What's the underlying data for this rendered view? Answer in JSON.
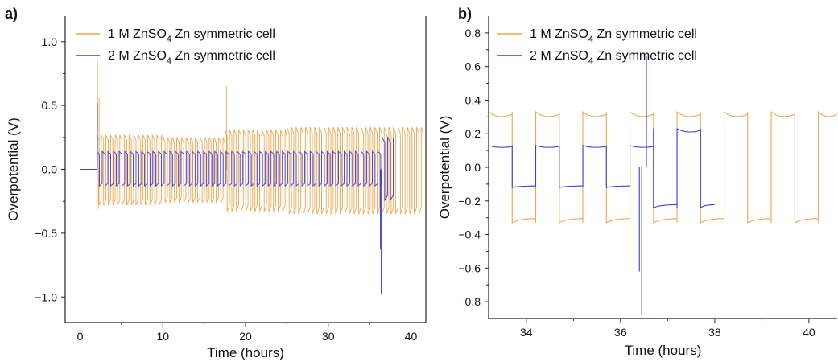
{
  "figure": {
    "panels": [
      {
        "label": "a)",
        "xlabel": "Time (hours)",
        "ylabel": "Overpotential (V)"
      },
      {
        "label": "b)",
        "xlabel": "Time (hours)",
        "ylabel": "Overpotential (V)"
      }
    ],
    "legend": [
      {
        "prefix": "1 M ZnSO",
        "sub": "4",
        "suffix": " Zn symmetric cell",
        "color": "#f0a64e"
      },
      {
        "prefix": "2 M ZnSO",
        "sub": "4",
        "suffix": " Zn symmetric cell",
        "color": "#3c3cdc"
      }
    ]
  },
  "chart_data": [
    {
      "type": "line",
      "panel": "a)",
      "title": "",
      "xlabel": "Time (hours)",
      "ylabel": "Overpotential (V)",
      "xlim": [
        -1.8,
        41.8
      ],
      "ylim": [
        -1.2,
        1.2
      ],
      "xticks": [
        0,
        10,
        20,
        30,
        40
      ],
      "yticks": [
        1.0,
        0.5,
        0.0,
        -0.5,
        -1.0
      ],
      "ytick_labels": [
        "1.0",
        "0.5",
        "0.0",
        "−0.5",
        "−1.0"
      ],
      "legend_position": "top-left",
      "series": [
        {
          "name": "1 M ZnSO4 Zn symmetric cell",
          "color": "#f0a64e",
          "segments": [
            {
              "t0": 0,
              "t1": 2,
              "hi": 0.0,
              "lo": 0.0
            },
            {
              "t0": 2,
              "t1": 10,
              "hi": 0.27,
              "lo": -0.28
            },
            {
              "t0": 10,
              "t1": 17.5,
              "hi": 0.25,
              "lo": -0.26
            },
            {
              "t0": 17.5,
              "t1": 25,
              "hi": 0.31,
              "lo": -0.33
            },
            {
              "t0": 25,
              "t1": 41.5,
              "hi": 0.33,
              "lo": -0.35
            }
          ],
          "spikes": [
            {
              "t": 2.1,
              "v": 0.85
            },
            {
              "t": 2.3,
              "v": 0.56
            },
            {
              "t": 17.7,
              "v": 0.65
            },
            {
              "t": 2.2,
              "v": -0.31
            }
          ]
        },
        {
          "name": "2 M ZnSO4 Zn symmetric cell",
          "color": "#3c3cdc",
          "segments": [
            {
              "t0": 0,
              "t1": 2,
              "hi": 0.0,
              "lo": 0.0
            },
            {
              "t0": 2,
              "t1": 36.5,
              "hi": 0.14,
              "lo": -0.13
            },
            {
              "t0": 36.5,
              "t1": 38,
              "hi": 0.25,
              "lo": -0.24
            }
          ],
          "spikes": [
            {
              "t": 2.1,
              "v": 0.52
            },
            {
              "t": 36.4,
              "v": -0.98
            },
            {
              "t": 36.5,
              "v": 0.66
            },
            {
              "t": 36.3,
              "v": -0.62
            }
          ]
        }
      ]
    },
    {
      "type": "line",
      "panel": "b)",
      "title": "",
      "xlabel": "Time (hours)",
      "ylabel": "Overpotential (V)",
      "xlim": [
        33.2,
        40.6
      ],
      "ylim": [
        -0.9,
        0.9
      ],
      "xticks": [
        34,
        36,
        38,
        40
      ],
      "yticks": [
        0.8,
        0.6,
        0.4,
        0.2,
        0.0,
        -0.2,
        -0.4,
        -0.6,
        -0.8
      ],
      "ytick_labels": [
        "0.8",
        "0.6",
        "0.4",
        "0.2",
        "0.0",
        "−0.2",
        "−0.4",
        "−0.6",
        "−0.8"
      ],
      "legend_position": "top-left",
      "series": [
        {
          "name": "1 M ZnSO4 Zn symmetric cell",
          "color": "#f0a64e",
          "period": 0.5,
          "t_start": 33.2,
          "t_end": 40.6,
          "hi": 0.33,
          "lo": -0.33
        },
        {
          "name": "2 M ZnSO4 Zn symmetric cell",
          "color": "#3c3cdc",
          "period": 0.5,
          "t_start": 33.2,
          "t_end": 38.0,
          "hi_before": 0.13,
          "lo_before": -0.12,
          "hi_after": 0.23,
          "lo_after": -0.24,
          "transition": 36.5,
          "spikes": [
            {
              "t": 36.4,
              "v": -0.62
            },
            {
              "t": 36.45,
              "v": -0.88
            },
            {
              "t": 36.55,
              "v": 0.66
            }
          ]
        }
      ]
    }
  ]
}
